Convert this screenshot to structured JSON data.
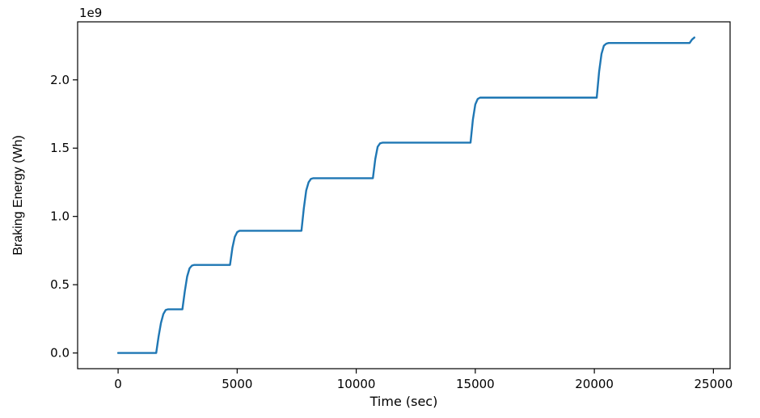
{
  "chart_data": {
    "type": "line",
    "title": "",
    "xlabel": "Time (sec)",
    "ylabel": "Braking Energy (Wh)",
    "y_offset_label": "1e9",
    "xlim": [
      -1700,
      25700
    ],
    "ylim": [
      -0.115,
      2.425
    ],
    "xticks": [
      0,
      5000,
      10000,
      15000,
      20000,
      25000
    ],
    "xtick_labels": [
      "0",
      "5000",
      "10000",
      "15000",
      "20000",
      "25000"
    ],
    "yticks": [
      0.0,
      0.5,
      1.0,
      1.5,
      2.0
    ],
    "ytick_labels": [
      "0.0",
      "0.5",
      "1.0",
      "1.5",
      "2.0"
    ],
    "grid": false,
    "series": [
      {
        "color": "#1f77b4",
        "x": [
          0,
          1600,
          1700,
          1800,
          1900,
          2000,
          2100,
          2200,
          2700,
          2800,
          2900,
          3000,
          3100,
          3200,
          3300,
          4700,
          4800,
          4900,
          5000,
          5100,
          5200,
          7700,
          7800,
          7900,
          8000,
          8100,
          8200,
          8300,
          10700,
          10800,
          10900,
          11000,
          11100,
          11200,
          14800,
          14900,
          15000,
          15100,
          15200,
          15300,
          20100,
          20200,
          20300,
          20400,
          20500,
          20600,
          24000,
          24100,
          24200
        ],
        "values": [
          0.0,
          0.0,
          0.12,
          0.22,
          0.285,
          0.315,
          0.32,
          0.32,
          0.32,
          0.45,
          0.56,
          0.62,
          0.64,
          0.645,
          0.645,
          0.645,
          0.77,
          0.85,
          0.885,
          0.895,
          0.895,
          0.895,
          1.06,
          1.19,
          1.25,
          1.275,
          1.28,
          1.28,
          1.28,
          1.42,
          1.51,
          1.535,
          1.54,
          1.54,
          1.54,
          1.71,
          1.82,
          1.86,
          1.87,
          1.87,
          1.87,
          2.06,
          2.19,
          2.25,
          2.265,
          2.27,
          2.27,
          2.295,
          2.31
        ]
      }
    ]
  }
}
